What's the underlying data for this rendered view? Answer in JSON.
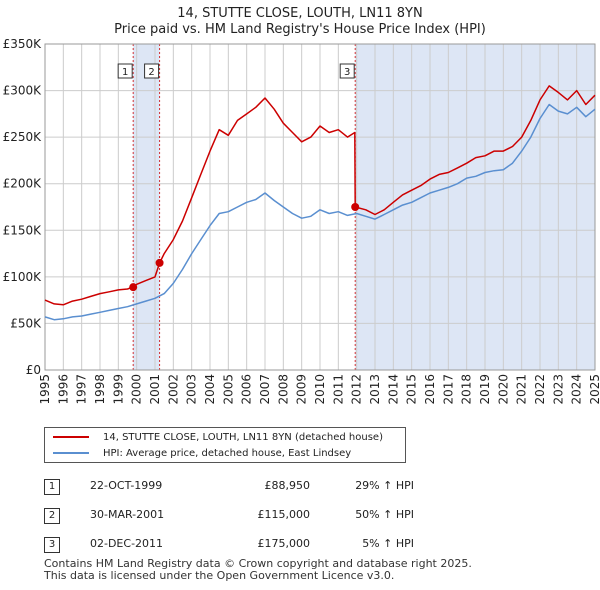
{
  "title_line1": "14, STUTTE CLOSE, LOUTH, LN11 8YN",
  "title_line2": "Price paid vs. HM Land Registry's House Price Index (HPI)",
  "colors": {
    "property": "#cc0000",
    "hpi": "#5a8fd0",
    "shade": "#dde6f5",
    "grid": "#cccccc"
  },
  "legend": {
    "property": "14, STUTTE CLOSE, LOUTH, LN11 8YN (detached house)",
    "hpi": "HPI: Average price, detached house, East Lindsey"
  },
  "transactions": [
    {
      "num": "1",
      "date": "22-OCT-1999",
      "price": "£88,950",
      "hpi": "29% ↑ HPI"
    },
    {
      "num": "2",
      "date": "30-MAR-2001",
      "price": "£115,000",
      "hpi": "50% ↑ HPI"
    },
    {
      "num": "3",
      "date": "02-DEC-2011",
      "price": "£175,000",
      "hpi": "5% ↑ HPI"
    }
  ],
  "footer": {
    "line1": "Contains HM Land Registry data © Crown copyright and database right 2025.",
    "line2": "This data is licensed under the Open Government Licence v3.0."
  },
  "chart_data": {
    "type": "line",
    "title": "14, STUTTE CLOSE, LOUTH, LN11 8YN",
    "subtitle": "Price paid vs. HM Land Registry's House Price Index (HPI)",
    "xlabel": "",
    "ylabel": "",
    "xlim": [
      1995,
      2025
    ],
    "ylim": [
      0,
      350000
    ],
    "y_ticks": [
      {
        "value": 0,
        "label": "£0"
      },
      {
        "value": 50000,
        "label": "£50K"
      },
      {
        "value": 100000,
        "label": "£100K"
      },
      {
        "value": 150000,
        "label": "£150K"
      },
      {
        "value": 200000,
        "label": "£200K"
      },
      {
        "value": 250000,
        "label": "£250K"
      },
      {
        "value": 300000,
        "label": "£300K"
      },
      {
        "value": 350000,
        "label": "£350K"
      }
    ],
    "x_ticks": [
      "1995",
      "1996",
      "1997",
      "1998",
      "1999",
      "2000",
      "2001",
      "2002",
      "2003",
      "2004",
      "2005",
      "2006",
      "2007",
      "2008",
      "2009",
      "2010",
      "2011",
      "2012",
      "2013",
      "2014",
      "2015",
      "2016",
      "2017",
      "2018",
      "2019",
      "2020",
      "2021",
      "2022",
      "2023",
      "2024",
      "2025"
    ],
    "grid": true,
    "shaded_periods": [
      [
        1999.81,
        2001.25
      ],
      [
        2011.92,
        2025.0
      ]
    ],
    "markers": [
      {
        "label": "1",
        "x": 1999.81,
        "y": 88950
      },
      {
        "label": "2",
        "x": 2001.25,
        "y": 115000
      },
      {
        "label": "3",
        "x": 2011.92,
        "y": 175000
      }
    ],
    "series": [
      {
        "name": "14, STUTTE CLOSE, LOUTH, LN11 8YN (detached house)",
        "x": [
          1995.0,
          1995.5,
          1996.0,
          1996.5,
          1997.0,
          1997.5,
          1998.0,
          1998.5,
          1999.0,
          1999.5,
          1999.81,
          2000.0,
          2000.5,
          2001.0,
          2001.25,
          2001.5,
          2002.0,
          2002.5,
          2003.0,
          2003.5,
          2004.0,
          2004.5,
          2005.0,
          2005.5,
          2006.0,
          2006.5,
          2007.0,
          2007.5,
          2008.0,
          2008.5,
          2009.0,
          2009.5,
          2010.0,
          2010.5,
          2011.0,
          2011.5,
          2011.9,
          2011.92,
          2012.5,
          2013.0,
          2013.5,
          2014.0,
          2014.5,
          2015.0,
          2015.5,
          2016.0,
          2016.5,
          2017.0,
          2017.5,
          2018.0,
          2018.5,
          2019.0,
          2019.5,
          2020.0,
          2020.5,
          2021.0,
          2021.5,
          2022.0,
          2022.5,
          2023.0,
          2023.5,
          2024.0,
          2024.5,
          2025.0
        ],
        "values": [
          75000,
          71000,
          70000,
          74000,
          76000,
          79000,
          82000,
          84000,
          86000,
          87000,
          88950,
          92000,
          96000,
          100000,
          115000,
          125000,
          140000,
          160000,
          185000,
          210000,
          235000,
          258000,
          252000,
          268000,
          275000,
          282000,
          292000,
          280000,
          265000,
          255000,
          245000,
          250000,
          262000,
          255000,
          258000,
          250000,
          255000,
          175000,
          172000,
          167000,
          172000,
          180000,
          188000,
          193000,
          198000,
          205000,
          210000,
          212000,
          217000,
          222000,
          228000,
          230000,
          235000,
          235000,
          240000,
          250000,
          268000,
          290000,
          305000,
          298000,
          290000,
          300000,
          285000,
          295000
        ]
      },
      {
        "name": "HPI: Average price, detached house, East Lindsey",
        "x": [
          1995.0,
          1995.5,
          1996.0,
          1996.5,
          1997.0,
          1997.5,
          1998.0,
          1998.5,
          1999.0,
          1999.5,
          2000.0,
          2000.5,
          2001.0,
          2001.5,
          2002.0,
          2002.5,
          2003.0,
          2003.5,
          2004.0,
          2004.5,
          2005.0,
          2005.5,
          2006.0,
          2006.5,
          2007.0,
          2007.5,
          2008.0,
          2008.5,
          2009.0,
          2009.5,
          2010.0,
          2010.5,
          2011.0,
          2011.5,
          2012.0,
          2012.5,
          2013.0,
          2013.5,
          2014.0,
          2014.5,
          2015.0,
          2015.5,
          2016.0,
          2016.5,
          2017.0,
          2017.5,
          2018.0,
          2018.5,
          2019.0,
          2019.5,
          2020.0,
          2020.5,
          2021.0,
          2021.5,
          2022.0,
          2022.5,
          2023.0,
          2023.5,
          2024.0,
          2024.5,
          2025.0
        ],
        "values": [
          57000,
          54000,
          55000,
          57000,
          58000,
          60000,
          62000,
          64000,
          66000,
          68000,
          71000,
          74000,
          77000,
          82000,
          93000,
          108000,
          125000,
          140000,
          155000,
          168000,
          170000,
          175000,
          180000,
          183000,
          190000,
          182000,
          175000,
          168000,
          163000,
          165000,
          172000,
          168000,
          170000,
          166000,
          168000,
          165000,
          162000,
          167000,
          172000,
          177000,
          180000,
          185000,
          190000,
          193000,
          196000,
          200000,
          206000,
          208000,
          212000,
          214000,
          215000,
          222000,
          235000,
          250000,
          270000,
          285000,
          278000,
          275000,
          282000,
          272000,
          280000
        ]
      }
    ]
  }
}
